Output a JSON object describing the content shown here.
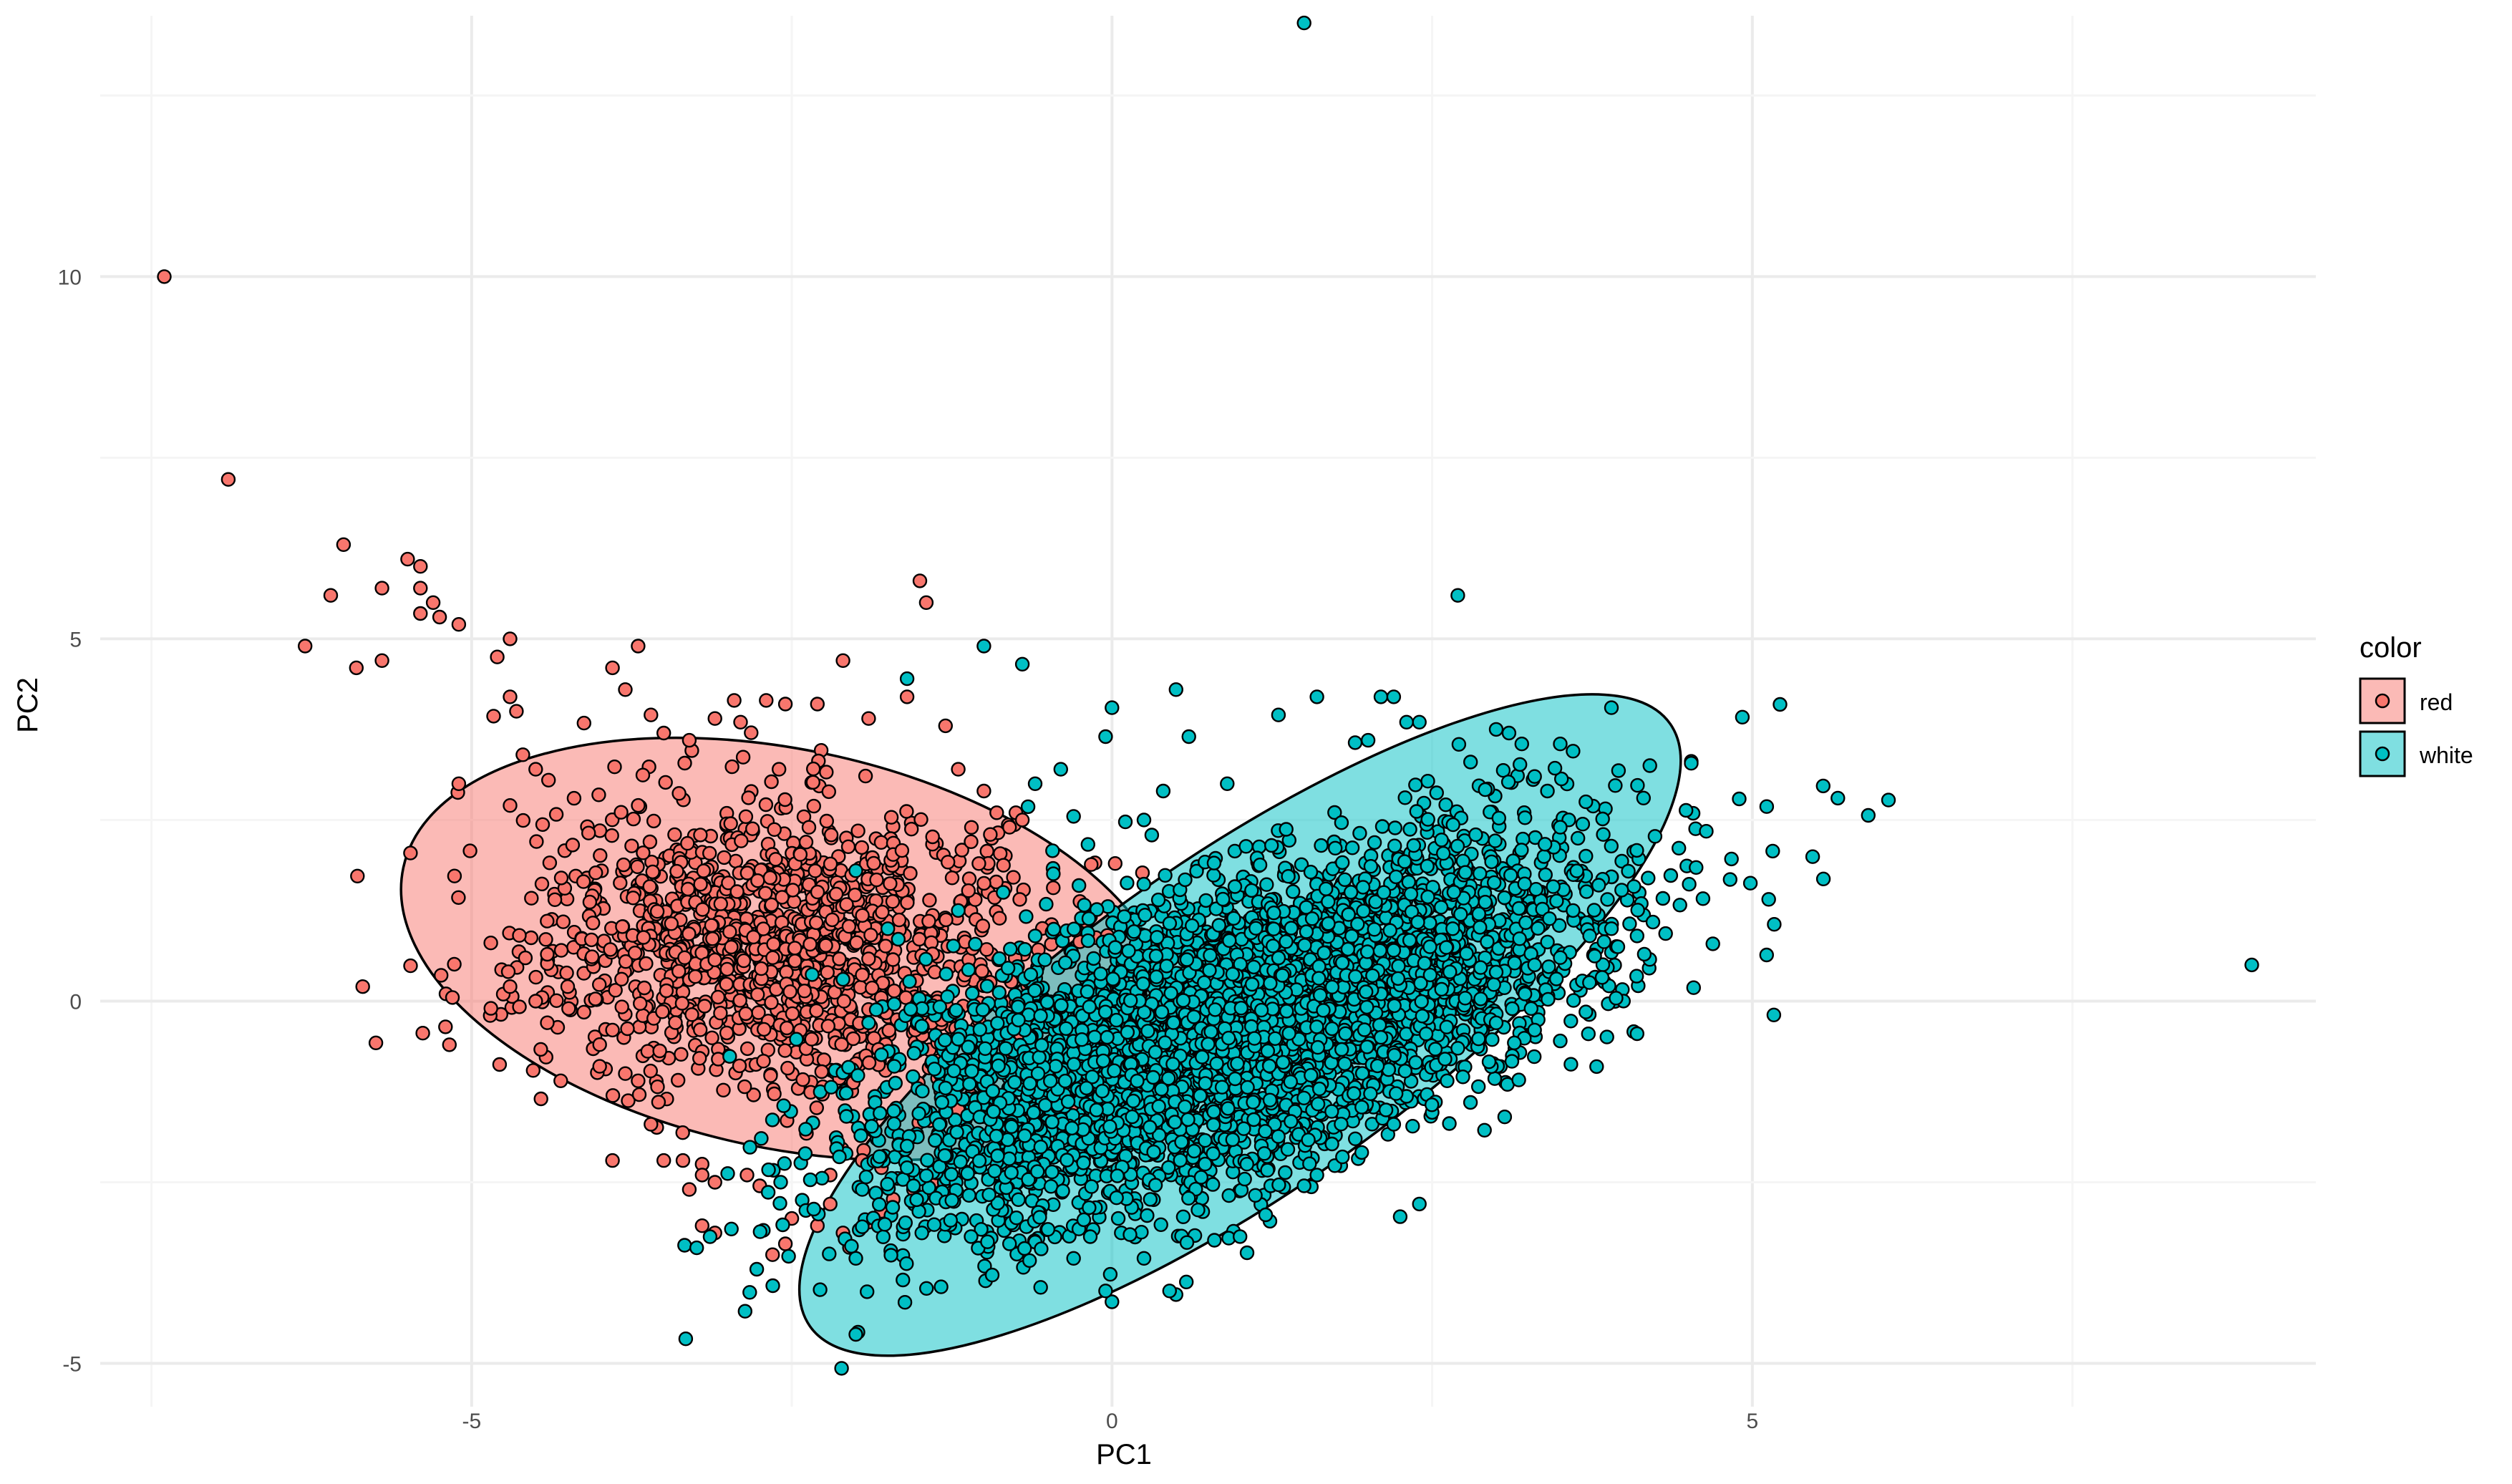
{
  "chart_data": {
    "type": "scatter",
    "title": "",
    "xlabel": "PC1",
    "ylabel": "PC2",
    "xlim": [
      -7.9,
      9.4
    ],
    "ylim": [
      -5.4,
      13.6
    ],
    "x_ticks": [
      -5,
      0,
      5
    ],
    "y_ticks": [
      -5,
      0,
      5,
      10
    ],
    "x_tick_labels": [
      "-5",
      "0",
      "5"
    ],
    "y_tick_labels": [
      "-5",
      "0",
      "5",
      "10"
    ],
    "grid": true,
    "legend": {
      "title": "color",
      "position": "right",
      "entries": [
        "red",
        "white"
      ]
    },
    "colors": {
      "red": "#F8766D",
      "white": "#00BFC4",
      "red_ellipse_fill": "#F8766D",
      "white_ellipse_fill": "#00BFC4",
      "point_stroke": "#000000",
      "grid_major": "#EBEBEB",
      "grid_minor": "#F5F5F5",
      "text": "#4D4D4D"
    },
    "series": [
      {
        "name": "red",
        "ellipse": {
          "cx": -2.55,
          "cy": 0.72,
          "a": 3.05,
          "b": 2.75,
          "angle_deg": -12
        },
        "cluster": {
          "n": 1350,
          "mean": [
            -2.6,
            0.75
          ],
          "sd": [
            0.95,
            0.95
          ],
          "corr": -0.05
        },
        "points": [
          [
            -7.4,
            10.0
          ],
          [
            -6.9,
            7.2
          ],
          [
            -6.0,
            6.3
          ],
          [
            -6.1,
            5.6
          ],
          [
            -6.3,
            4.9
          ],
          [
            -5.9,
            4.6
          ],
          [
            -5.7,
            5.7
          ],
          [
            -5.7,
            4.7
          ],
          [
            -5.5,
            6.1
          ],
          [
            -5.4,
            6.0
          ],
          [
            -5.4,
            5.7
          ],
          [
            -5.4,
            5.35
          ],
          [
            -5.3,
            5.5
          ],
          [
            -5.25,
            5.3
          ],
          [
            -5.1,
            5.2
          ],
          [
            -5.1,
            3.0
          ],
          [
            -5.2,
            0.1
          ],
          [
            -5.15,
            0.05
          ],
          [
            -5.85,
            0.2
          ],
          [
            -4.8,
            4.75
          ],
          [
            -4.7,
            5.0
          ],
          [
            -4.7,
            4.2
          ],
          [
            -4.65,
            4.0
          ],
          [
            -4.6,
            3.4
          ],
          [
            -4.7,
            2.7
          ],
          [
            -4.5,
            3.2
          ],
          [
            -4.4,
            3.05
          ],
          [
            -4.2,
            2.8
          ],
          [
            -4.3,
            1.7
          ],
          [
            -4.35,
            1.4
          ],
          [
            -4.3,
            0.7
          ],
          [
            -4.25,
            0.2
          ],
          [
            -4.45,
            0.05
          ],
          [
            -4.5,
            0.0
          ],
          [
            -4.7,
            0.2
          ],
          [
            -4.85,
            -0.1
          ],
          [
            -3.9,
            4.6
          ],
          [
            -3.8,
            4.3
          ],
          [
            -3.7,
            4.9
          ],
          [
            -3.6,
            3.95
          ],
          [
            -3.5,
            3.7
          ],
          [
            -3.3,
            3.6
          ],
          [
            -3.1,
            3.9
          ],
          [
            -2.95,
            4.15
          ],
          [
            -2.7,
            4.15
          ],
          [
            -2.9,
            3.85
          ],
          [
            -2.6,
            3.2
          ],
          [
            -2.55,
            4.1
          ],
          [
            -2.3,
            4.1
          ],
          [
            -2.1,
            4.7
          ],
          [
            -1.9,
            3.9
          ],
          [
            -1.6,
            4.2
          ],
          [
            -1.3,
            3.8
          ],
          [
            -1.5,
            5.8
          ],
          [
            -1.45,
            5.5
          ],
          [
            -1.2,
            3.2
          ],
          [
            -1.0,
            2.9
          ],
          [
            -0.9,
            2.6
          ],
          [
            -0.75,
            2.6
          ],
          [
            -0.8,
            2.4
          ],
          [
            -0.7,
            2.5
          ],
          [
            -0.95,
            2.3
          ],
          [
            -1.1,
            2.2
          ],
          [
            -3.9,
            -0.4
          ],
          [
            -4.0,
            -0.6
          ],
          [
            -4.0,
            -0.9
          ],
          [
            -3.8,
            -1.0
          ],
          [
            -3.7,
            -1.1
          ],
          [
            -3.6,
            -1.7
          ],
          [
            -3.9,
            -2.2
          ],
          [
            -3.5,
            -2.2
          ],
          [
            -3.35,
            -2.2
          ],
          [
            -3.3,
            -2.6
          ],
          [
            -3.2,
            -2.25
          ],
          [
            -3.2,
            -2.4
          ],
          [
            -3.1,
            -2.5
          ],
          [
            -3.2,
            -3.1
          ],
          [
            -3.1,
            -3.2
          ],
          [
            -2.85,
            -2.4
          ],
          [
            -2.75,
            -2.55
          ],
          [
            -2.65,
            -3.5
          ],
          [
            -2.55,
            -3.35
          ],
          [
            -2.5,
            -3.0
          ],
          [
            -2.3,
            -3.1
          ],
          [
            -2.2,
            -2.8
          ],
          [
            -2.1,
            -3.2
          ],
          [
            -2.05,
            -3.4
          ],
          [
            -1.9,
            -3.05
          ],
          [
            -1.8,
            -2.9
          ],
          [
            -2.2,
            -2.4
          ],
          [
            -1.95,
            -2.2
          ],
          [
            -1.8,
            -2.3
          ],
          [
            -1.65,
            -2.45
          ],
          [
            -1.55,
            -2.6
          ],
          [
            -1.4,
            -2.5
          ],
          [
            -1.3,
            -2.1
          ],
          [
            -1.2,
            -1.5
          ],
          [
            -1.1,
            -1.3
          ],
          [
            -0.9,
            -0.8
          ],
          [
            -0.8,
            -0.3
          ]
        ]
      },
      {
        "name": "white",
        "ellipse": {
          "cx": 1.0,
          "cy": -0.33,
          "a": 4.1,
          "b": 2.3,
          "angle_deg": 35
        },
        "cluster": {
          "n": 4800,
          "mean": [
            0.95,
            -0.35
          ],
          "sd": [
            1.35,
            1.25
          ],
          "corr": 0.62
        },
        "points": [
          [
            1.5,
            13.5
          ],
          [
            8.9,
            0.5
          ],
          [
            2.7,
            5.6
          ],
          [
            -1.0,
            4.9
          ],
          [
            -0.7,
            4.65
          ],
          [
            -1.6,
            4.45
          ],
          [
            0.5,
            4.3
          ],
          [
            0.0,
            4.05
          ],
          [
            0.6,
            3.65
          ],
          [
            -0.05,
            3.65
          ],
          [
            1.3,
            3.95
          ],
          [
            1.6,
            4.2
          ],
          [
            2.1,
            4.2
          ],
          [
            2.2,
            4.2
          ],
          [
            2.3,
            3.85
          ],
          [
            2.4,
            3.85
          ],
          [
            2.0,
            3.6
          ],
          [
            2.8,
            3.3
          ],
          [
            3.0,
            3.75
          ],
          [
            3.1,
            3.7
          ],
          [
            3.2,
            3.55
          ],
          [
            3.5,
            3.55
          ],
          [
            3.6,
            3.45
          ],
          [
            3.9,
            4.05
          ],
          [
            4.2,
            3.25
          ],
          [
            3.3,
            3.1
          ],
          [
            3.4,
            2.9
          ],
          [
            3.7,
            2.75
          ],
          [
            3.5,
            2.4
          ],
          [
            3.7,
            2.0
          ],
          [
            3.8,
            1.6
          ],
          [
            3.6,
            1.25
          ],
          [
            3.9,
            1.0
          ],
          [
            4.1,
            0.9
          ],
          [
            3.95,
            0.75
          ],
          [
            3.5,
            0.6
          ],
          [
            3.3,
            0.5
          ],
          [
            3.0,
            0.4
          ],
          [
            3.0,
            -0.3
          ],
          [
            3.3,
            -0.4
          ],
          [
            3.5,
            -0.55
          ],
          [
            3.7,
            -0.15
          ],
          [
            4.1,
            -0.45
          ],
          [
            2.7,
            -0.65
          ],
          [
            2.6,
            -0.8
          ],
          [
            2.1,
            -0.5
          ],
          [
            2.4,
            -2.8
          ],
          [
            2.2,
            -1.7
          ],
          [
            1.9,
            -1.9
          ],
          [
            1.8,
            -2.15
          ],
          [
            1.6,
            -2.4
          ],
          [
            1.5,
            -2.55
          ],
          [
            1.2,
            -2.95
          ],
          [
            1.0,
            -3.25
          ],
          [
            0.8,
            -3.3
          ],
          [
            0.5,
            -4.05
          ],
          [
            0.45,
            -4.0
          ],
          [
            0.25,
            -3.55
          ],
          [
            0.0,
            -4.15
          ],
          [
            -0.05,
            -4.0
          ],
          [
            -0.3,
            -3.55
          ],
          [
            -0.5,
            -3.15
          ],
          [
            -0.8,
            -3.35
          ],
          [
            -1.1,
            -3.25
          ],
          [
            -1.25,
            -2.75
          ],
          [
            -1.55,
            -2.55
          ],
          [
            -1.6,
            -2.3
          ],
          [
            -1.95,
            -2.6
          ],
          [
            -2.0,
            -3.55
          ],
          [
            -2.0,
            -4.6
          ],
          [
            -1.6,
            -2.0
          ],
          [
            -1.3,
            -1.2
          ],
          [
            -1.7,
            -0.9
          ],
          [
            -1.9,
            -0.3
          ],
          [
            -2.1,
            0.3
          ],
          [
            -1.75,
            1.0
          ],
          [
            -2.0,
            1.8
          ],
          [
            -1.2,
            1.25
          ],
          [
            -0.4,
            3.2
          ],
          [
            -0.6,
            3.0
          ],
          [
            -0.3,
            2.55
          ],
          [
            0.25,
            2.5
          ],
          [
            0.4,
            2.9
          ],
          [
            0.9,
            3.0
          ],
          [
            -0.85,
            1.5
          ],
          [
            -0.6,
            0.9
          ]
        ]
      }
    ]
  }
}
